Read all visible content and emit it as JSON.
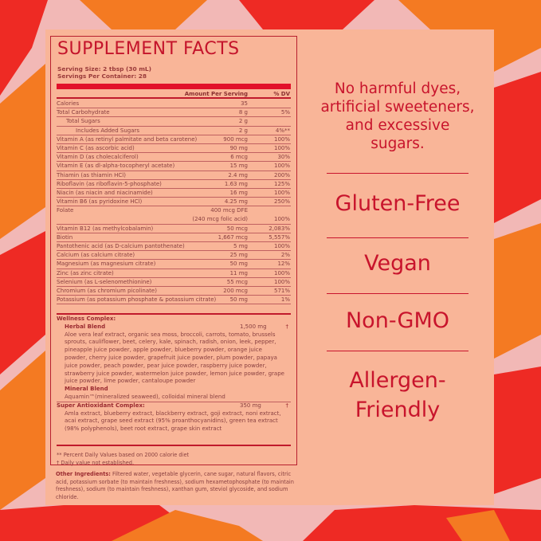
{
  "facts": {
    "title": "SUPPLEMENT FACTS",
    "serving_size": "Serving Size: 2 tbsp (30 mL)",
    "servings_per_container": "Servings Per Container: 28",
    "col_amount": "Amount Per Serving",
    "col_dv": "% DV",
    "rows": [
      {
        "name": "Calories",
        "amount": "35",
        "dv": ""
      },
      {
        "name": "Total Carbohydrate",
        "amount": "8 g",
        "dv": "5%"
      },
      {
        "name": "Total Sugars",
        "amount": "2 g",
        "dv": ""
      },
      {
        "name": "Includes Added Sugars",
        "amount": "2 g",
        "dv": "4%**"
      },
      {
        "name": "Vitamin A (as retinyl palmitate and beta carotene)",
        "amount": "900 mcg",
        "dv": "100%"
      },
      {
        "name": "Vitamin C (as ascorbic acid)",
        "amount": "90 mg",
        "dv": "100%"
      },
      {
        "name": "Vitamin D (as cholecalciferol)",
        "amount": "6 mcg",
        "dv": "30%"
      },
      {
        "name": "Vitamin E (as dl-alpha-tocopheryl acetate)",
        "amount": "15 mg",
        "dv": "100%"
      },
      {
        "name": "Thiamin (as thiamin HCl)",
        "amount": "2.4 mg",
        "dv": "200%"
      },
      {
        "name": "Riboflavin (as riboflavin-5-phosphate)",
        "amount": "1.63 mg",
        "dv": "125%"
      },
      {
        "name": "Niacin (as niacin and niacinamide)",
        "amount": "16 mg",
        "dv": "100%"
      },
      {
        "name": "Vitamin B6 (as pyridoxine HCl)",
        "amount": "4.25 mg",
        "dv": "250%"
      },
      {
        "name": "Folate",
        "amount": "400 mcg DFE",
        "dv": ""
      },
      {
        "name": "",
        "amount": "(240 mcg folic acid)",
        "dv": "100%"
      },
      {
        "name": "Vitamin B12 (as methylcobalamin)",
        "amount": "50 mcg",
        "dv": "2,083%"
      },
      {
        "name": "Biotin",
        "amount": "1,667 mcg",
        "dv": "5,557%"
      },
      {
        "name": "Pantothenic acid (as D-calcium pantothenate)",
        "amount": "5 mg",
        "dv": "100%"
      },
      {
        "name": "Calcium (as calcium citrate)",
        "amount": "25 mg",
        "dv": "2%"
      },
      {
        "name": "Magnesium (as magnesium citrate)",
        "amount": "50 mg",
        "dv": "12%"
      },
      {
        "name": "Zinc (as zinc citrate)",
        "amount": "11 mg",
        "dv": "100%"
      },
      {
        "name": "Selenium (as L-selenomethionine)",
        "amount": "55 mcg",
        "dv": "100%"
      },
      {
        "name": "Chromium (as chromium picolinate)",
        "amount": "200 mcg",
        "dv": "571%"
      },
      {
        "name": "Potassium (as potassium phosphate & potassium citrate)",
        "amount": "50 mg",
        "dv": "1%"
      }
    ],
    "wellness_label": "Wellness Complex:",
    "herbal_label": "Herbal Blend",
    "herbal_amount": "1,500 mg",
    "herbal_dv": "†",
    "herbal_text": "Aloe vera leaf extract, organic sea moss, broccoli, carrots, tomato, brussels sprouts, cauliflower, beet, celery, kale, spinach, radish, onion, leek, pepper, pineapple juice powder, apple powder, blueberry powder, orange juice powder, cherry juice powder, grapefruit juice powder, plum powder, papaya juice powder, peach powder, pear juice powder, raspberry juice powder, strawberry juice powder, watermelon juice powder, lemon juice powder, grape juice powder, lime powder, cantaloupe powder",
    "mineral_label": "Mineral Blend",
    "mineral_text": "Aquamin™(mineralized seaweed), colloidal mineral blend",
    "antioxidant_label": "Super Antioxidant Complex:",
    "antioxidant_amount": "350 mg",
    "antioxidant_dv": "†",
    "antioxidant_text": "Amla extract, blueberry extract, blackberry extract, goji extract, noni extract, acai extract, grape seed extract (95% proanthocyanidins), green tea extract (98% polyphenols), beet root extract, grape skin extract",
    "footnote_1": "** Percent Daily Values based on 2000 calorie diet",
    "footnote_2": "† Daily value not established."
  },
  "other_ingredients": {
    "label": "Other Ingredients:",
    "text": " Filtered water, vegetable glycerin, cane sugar, natural flavors, citric acid, potassium sorbate (to maintain freshness), sodium hexametophosphate (to maintain freshness), sodium (to maintain freshness), xanthan gum, steviol glycoside, and sodium chloride."
  },
  "claims": {
    "tagline": "No harmful dyes, artificial sweeteners, and excessive sugars.",
    "items": [
      "Gluten-Free",
      "Vegan",
      "Non-GMO",
      "Allergen-Friendly"
    ]
  },
  "colors": {
    "accent": "#c8142c",
    "panel": "#f9b598",
    "bg_pink": "#f2b8b6",
    "bg_red": "#ee2a24",
    "bg_orange": "#f47a22"
  }
}
